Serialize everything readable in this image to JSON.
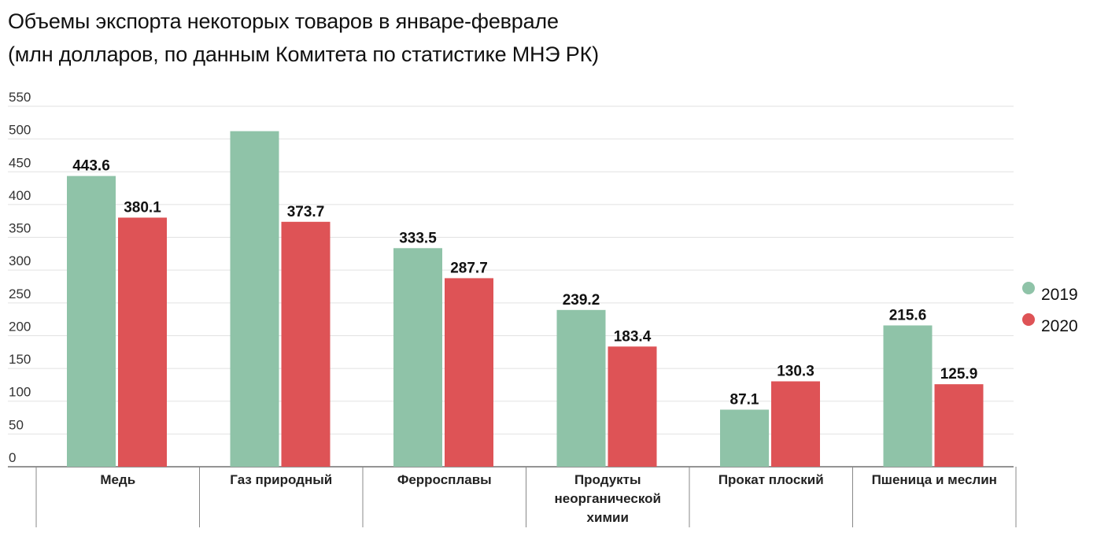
{
  "title_line1": "Объемы экспорта некоторых товаров в январе-феврале",
  "title_line2": "(млн долларов, по данным Комитета по статистике МНЭ РК)",
  "chart_data": {
    "type": "bar",
    "categories": [
      "Медь",
      "Газ природный",
      "Ферросплавы",
      "Продукты неорганической химии",
      "Прокат плоский",
      "Пшеница и меслин"
    ],
    "category_lines": [
      [
        "Медь"
      ],
      [
        "Газ природный"
      ],
      [
        "Ферросплавы"
      ],
      [
        "Продукты",
        "неорганической",
        "химии"
      ],
      [
        "Прокат плоский"
      ],
      [
        "Пшеница и меслин"
      ]
    ],
    "series": [
      {
        "name": "2019",
        "color": "#8fc3a8",
        "values": [
          443.6,
          512,
          333.5,
          239.2,
          87.1,
          215.6
        ],
        "labels": [
          "443.6",
          "",
          "333.5",
          "239.2",
          "87.1",
          "215.6"
        ]
      },
      {
        "name": "2020",
        "color": "#de5356",
        "values": [
          380.1,
          373.7,
          287.7,
          183.4,
          130.3,
          125.9
        ],
        "labels": [
          "380.1",
          "373.7",
          "287.7",
          "183.4",
          "130.3",
          "125.9"
        ]
      }
    ],
    "yticks": [
      0,
      50,
      100,
      150,
      200,
      250,
      300,
      350,
      400,
      450,
      500,
      550
    ],
    "ylim": [
      0,
      550
    ],
    "grid": true,
    "legend": "right"
  }
}
